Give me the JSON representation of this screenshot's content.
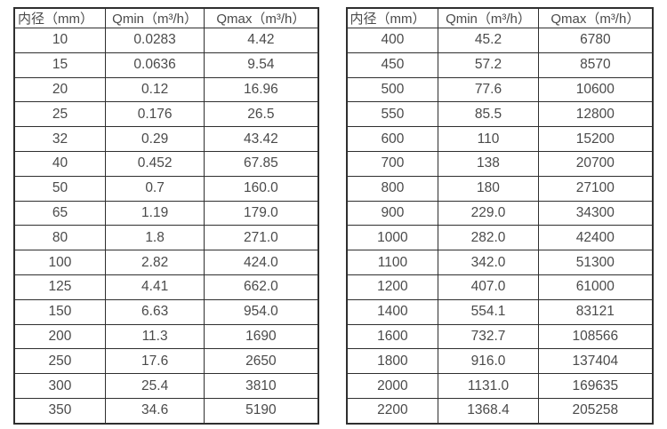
{
  "tables": [
    {
      "name": "flow-range-table-small-diameters",
      "headers": [
        "内径（mm）",
        "Qmin（m³/h）",
        "Qmax（m³/h）"
      ],
      "rows": [
        [
          "10",
          "0.0283",
          "4.42"
        ],
        [
          "15",
          "0.0636",
          "9.54"
        ],
        [
          "20",
          "0.12",
          "16.96"
        ],
        [
          "25",
          "0.176",
          "26.5"
        ],
        [
          "32",
          "0.29",
          "43.42"
        ],
        [
          "40",
          "0.452",
          "67.85"
        ],
        [
          "50",
          "0.7",
          "160.0"
        ],
        [
          "65",
          "1.19",
          "179.0"
        ],
        [
          "80",
          "1.8",
          "271.0"
        ],
        [
          "100",
          "2.82",
          "424.0"
        ],
        [
          "125",
          "4.41",
          "662.0"
        ],
        [
          "150",
          "6.63",
          "954.0"
        ],
        [
          "200",
          "11.3",
          "1690"
        ],
        [
          "250",
          "17.6",
          "2650"
        ],
        [
          "300",
          "25.4",
          "3810"
        ],
        [
          "350",
          "34.6",
          "5190"
        ]
      ]
    },
    {
      "name": "flow-range-table-large-diameters",
      "headers": [
        "内径（mm）",
        "Qmin（m³/h）",
        "Qmax（m³/h）"
      ],
      "rows": [
        [
          "400",
          "45.2",
          "6780"
        ],
        [
          "450",
          "57.2",
          "8570"
        ],
        [
          "500",
          "77.6",
          "10600"
        ],
        [
          "550",
          "85.5",
          "12800"
        ],
        [
          "600",
          "110",
          "15200"
        ],
        [
          "700",
          "138",
          "20700"
        ],
        [
          "800",
          "180",
          "27100"
        ],
        [
          "900",
          "229.0",
          "34300"
        ],
        [
          "1000",
          "282.0",
          "42400"
        ],
        [
          "1100",
          "342.0",
          "51300"
        ],
        [
          "1200",
          "407.0",
          "61000"
        ],
        [
          "1400",
          "554.1",
          "83121"
        ],
        [
          "1600",
          "732.7",
          "108566"
        ],
        [
          "1800",
          "916.0",
          "137404"
        ],
        [
          "2000",
          "1131.0",
          "169635"
        ],
        [
          "2200",
          "1368.4",
          "205258"
        ]
      ]
    }
  ]
}
